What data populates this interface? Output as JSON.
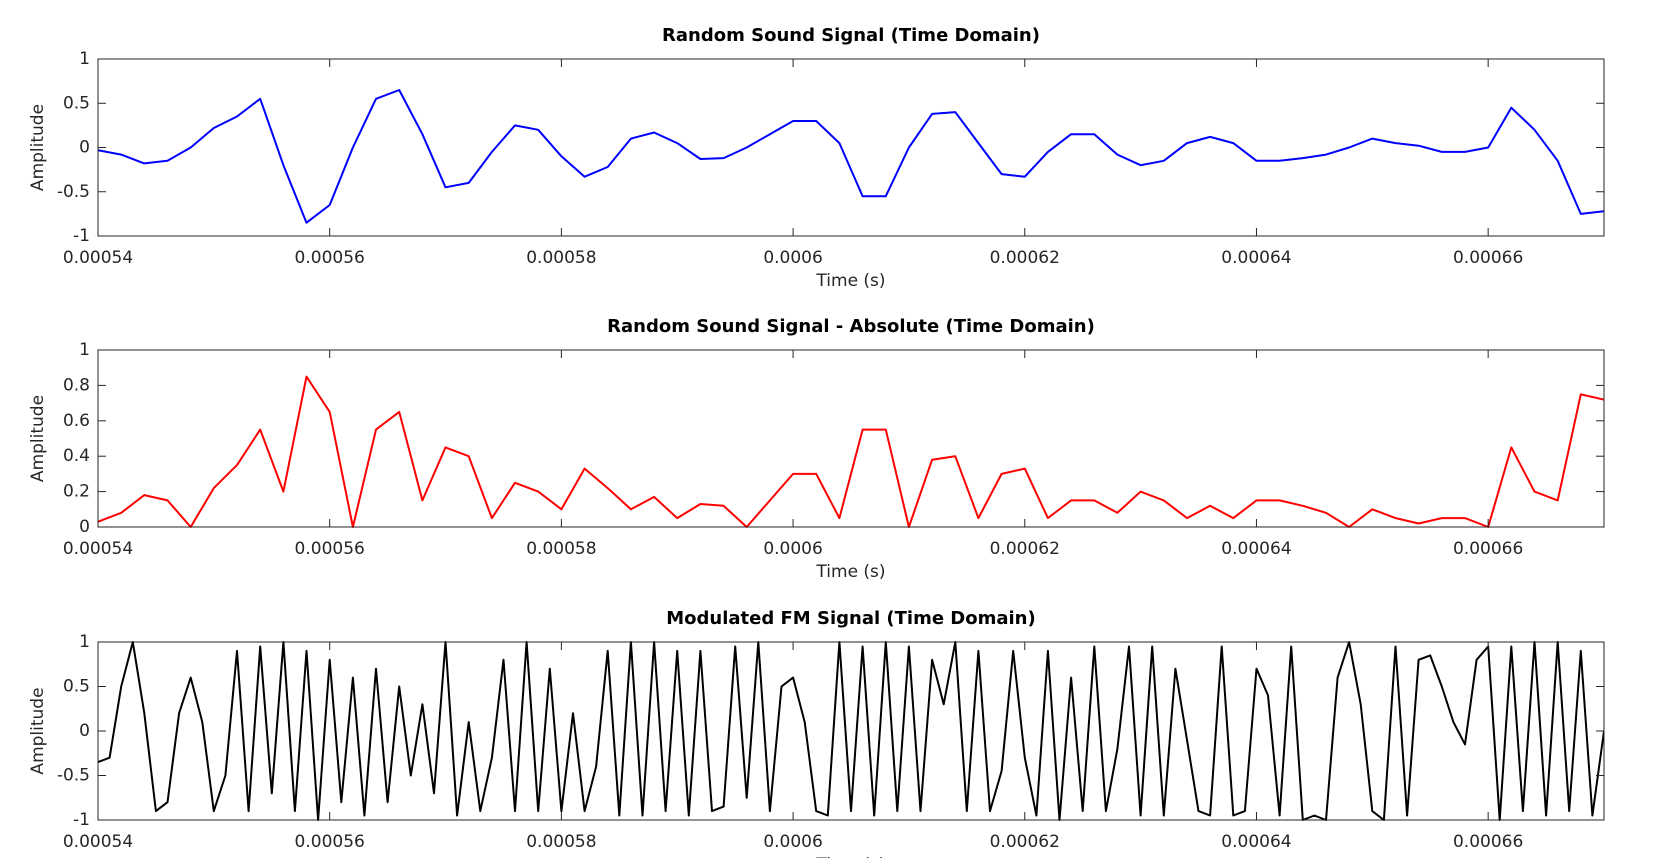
{
  "chart_data": [
    {
      "type": "line",
      "title": "Random Sound Signal (Time Domain)",
      "xlabel": "Time (s)",
      "ylabel": "Amplitude",
      "color": "#0000ff",
      "x": [
        0.00054,
        0.000542,
        0.000544,
        0.000546,
        0.000548,
        0.00055,
        0.000552,
        0.000554,
        0.000556,
        0.000558,
        0.00056,
        0.000562,
        0.000564,
        0.000566,
        0.000568,
        0.00057,
        0.000572,
        0.000574,
        0.000576,
        0.000578,
        0.00058,
        0.000582,
        0.000584,
        0.000586,
        0.000588,
        0.00059,
        0.000592,
        0.000594,
        0.000596,
        0.000598,
        0.0006,
        0.000602,
        0.000604,
        0.000606,
        0.000608,
        0.00061,
        0.000612,
        0.000614,
        0.000616,
        0.000618,
        0.00062,
        0.000622,
        0.000624,
        0.000626,
        0.000628,
        0.00063,
        0.000632,
        0.000634,
        0.000636,
        0.000638,
        0.00064,
        0.000642,
        0.000644,
        0.000646,
        0.000648,
        0.00065,
        0.000652,
        0.000654,
        0.000656,
        0.000658,
        0.00066,
        0.000662,
        0.000664,
        0.000666,
        0.000668,
        0.00067
      ],
      "values": [
        -0.03,
        -0.08,
        -0.18,
        -0.15,
        0.0,
        0.22,
        0.35,
        0.55,
        -0.2,
        -0.85,
        -0.65,
        0.0,
        0.55,
        0.65,
        0.15,
        -0.45,
        -0.4,
        -0.05,
        0.25,
        0.2,
        -0.1,
        -0.33,
        -0.22,
        0.1,
        0.17,
        0.05,
        -0.13,
        -0.12,
        0.0,
        0.15,
        0.3,
        0.3,
        0.05,
        -0.55,
        -0.55,
        0.0,
        0.38,
        0.4,
        0.05,
        -0.3,
        -0.33,
        -0.05,
        0.15,
        0.15,
        -0.08,
        -0.2,
        -0.15,
        0.05,
        0.12,
        0.05,
        -0.15,
        -0.15,
        -0.12,
        -0.08,
        0.0,
        0.1,
        0.05,
        0.02,
        -0.05,
        -0.05,
        0.0,
        0.45,
        0.2,
        -0.15,
        -0.75,
        -0.72
      ],
      "xlim": [
        0.00054,
        0.00067
      ],
      "xticks": [
        0.00054,
        0.00056,
        0.00058,
        0.0006,
        0.00062,
        0.00064,
        0.00066
      ],
      "ylim": [
        -1,
        1
      ],
      "yticks": [
        -1,
        -0.5,
        0,
        0.5,
        1
      ]
    },
    {
      "type": "line",
      "title": "Random Sound Signal - Absolute (Time Domain)",
      "xlabel": "Time (s)",
      "ylabel": "Amplitude",
      "color": "#ff0000",
      "x": [
        0.00054,
        0.000542,
        0.000544,
        0.000546,
        0.000548,
        0.00055,
        0.000552,
        0.000554,
        0.000556,
        0.000558,
        0.00056,
        0.000562,
        0.000564,
        0.000566,
        0.000568,
        0.00057,
        0.000572,
        0.000574,
        0.000576,
        0.000578,
        0.00058,
        0.000582,
        0.000584,
        0.000586,
        0.000588,
        0.00059,
        0.000592,
        0.000594,
        0.000596,
        0.000598,
        0.0006,
        0.000602,
        0.000604,
        0.000606,
        0.000608,
        0.00061,
        0.000612,
        0.000614,
        0.000616,
        0.000618,
        0.00062,
        0.000622,
        0.000624,
        0.000626,
        0.000628,
        0.00063,
        0.000632,
        0.000634,
        0.000636,
        0.000638,
        0.00064,
        0.000642,
        0.000644,
        0.000646,
        0.000648,
        0.00065,
        0.000652,
        0.000654,
        0.000656,
        0.000658,
        0.00066,
        0.000662,
        0.000664,
        0.000666,
        0.000668,
        0.00067
      ],
      "values": [
        0.03,
        0.08,
        0.18,
        0.15,
        0.0,
        0.22,
        0.35,
        0.55,
        0.2,
        0.85,
        0.65,
        0.0,
        0.55,
        0.65,
        0.15,
        0.45,
        0.4,
        0.05,
        0.25,
        0.2,
        0.1,
        0.33,
        0.22,
        0.1,
        0.17,
        0.05,
        0.13,
        0.12,
        0.0,
        0.15,
        0.3,
        0.3,
        0.05,
        0.55,
        0.55,
        0.0,
        0.38,
        0.4,
        0.05,
        0.3,
        0.33,
        0.05,
        0.15,
        0.15,
        0.08,
        0.2,
        0.15,
        0.05,
        0.12,
        0.05,
        0.15,
        0.15,
        0.12,
        0.08,
        0.0,
        0.1,
        0.05,
        0.02,
        0.05,
        0.05,
        0.0,
        0.45,
        0.2,
        0.15,
        0.75,
        0.72
      ],
      "xlim": [
        0.00054,
        0.00067
      ],
      "xticks": [
        0.00054,
        0.00056,
        0.00058,
        0.0006,
        0.00062,
        0.00064,
        0.00066
      ],
      "ylim": [
        0,
        1
      ],
      "yticks": [
        0,
        0.2,
        0.4,
        0.6,
        0.8,
        1
      ]
    },
    {
      "type": "line",
      "title": "Modulated FM Signal (Time Domain)",
      "xlabel": "Time (s)",
      "ylabel": "Amplitude",
      "color": "#000000",
      "x": [
        0.00054,
        0.000541,
        0.000542,
        0.000543,
        0.000544,
        0.000545,
        0.000546,
        0.000547,
        0.000548,
        0.000549,
        0.00055,
        0.000551,
        0.000552,
        0.000553,
        0.000554,
        0.000555,
        0.000556,
        0.000557,
        0.000558,
        0.000559,
        0.00056,
        0.000561,
        0.000562,
        0.000563,
        0.000564,
        0.000565,
        0.000566,
        0.000567,
        0.000568,
        0.000569,
        0.00057,
        0.000571,
        0.000572,
        0.000573,
        0.000574,
        0.000575,
        0.000576,
        0.000577,
        0.000578,
        0.000579,
        0.00058,
        0.000581,
        0.000582,
        0.000583,
        0.000584,
        0.000585,
        0.000586,
        0.000587,
        0.000588,
        0.000589,
        0.00059,
        0.000591,
        0.000592,
        0.000593,
        0.000594,
        0.000595,
        0.000596,
        0.000597,
        0.000598,
        0.000599,
        0.0006,
        0.000601,
        0.000602,
        0.000603,
        0.000604,
        0.000605,
        0.000606,
        0.000607,
        0.000608,
        0.000609,
        0.00061,
        0.000611,
        0.000612,
        0.000613,
        0.000614,
        0.000615,
        0.000616,
        0.000617,
        0.000618,
        0.000619,
        0.00062,
        0.000621,
        0.000622,
        0.000623,
        0.000624,
        0.000625,
        0.000626,
        0.000627,
        0.000628,
        0.000629,
        0.00063,
        0.000631,
        0.000632,
        0.000633,
        0.000634,
        0.000635,
        0.000636,
        0.000637,
        0.000638,
        0.000639,
        0.00064,
        0.000641,
        0.000642,
        0.000643,
        0.000644,
        0.000645,
        0.000646,
        0.000647,
        0.000648,
        0.000649,
        0.00065,
        0.000651,
        0.000652,
        0.000653,
        0.000654,
        0.000655,
        0.000656,
        0.000657,
        0.000658,
        0.000659,
        0.00066,
        0.000661,
        0.000662,
        0.000663,
        0.000664,
        0.000665,
        0.000666,
        0.000667,
        0.000668,
        0.000669,
        0.00067
      ],
      "values": [
        -0.35,
        -0.3,
        0.5,
        1,
        0.2,
        -0.9,
        -0.8,
        0.2,
        0.6,
        0.1,
        -0.9,
        -0.5,
        0.9,
        -0.9,
        0.95,
        -0.7,
        1,
        -0.9,
        0.9,
        -1,
        0.8,
        -0.8,
        0.6,
        -0.95,
        0.7,
        -0.8,
        0.5,
        -0.5,
        0.3,
        -0.7,
        1,
        -0.95,
        0.1,
        -0.9,
        -0.3,
        0.8,
        -0.9,
        1,
        -0.9,
        0.7,
        -0.9,
        0.2,
        -0.9,
        -0.4,
        0.9,
        -0.95,
        1,
        -0.95,
        1,
        -0.9,
        0.9,
        -0.95,
        0.9,
        -0.9,
        -0.85,
        0.95,
        -0.75,
        1,
        -0.9,
        0.5,
        0.6,
        0.1,
        -0.9,
        -0.95,
        1,
        -0.9,
        0.95,
        -0.95,
        1,
        -0.9,
        0.95,
        -0.9,
        0.8,
        0.3,
        1,
        -0.9,
        0.9,
        -0.9,
        -0.45,
        0.9,
        -0.3,
        -0.95,
        0.9,
        -1,
        0.6,
        -0.9,
        0.95,
        -0.9,
        -0.2,
        0.95,
        -0.95,
        0.95,
        -0.95,
        0.7,
        -0.1,
        -0.9,
        -0.95,
        0.95,
        -0.95,
        -0.9,
        0.7,
        0.4,
        -0.95,
        0.95,
        -1,
        -0.95,
        -1,
        0.6,
        1,
        0.3,
        -0.9,
        -1,
        0.95,
        -0.95,
        0.8,
        0.85,
        0.5,
        0.1,
        -0.15,
        0.8,
        0.95,
        -1,
        0.95,
        -0.9,
        1,
        -0.95,
        1,
        -0.9,
        0.9,
        -0.95,
        0
      ],
      "xlim": [
        0.00054,
        0.00067
      ],
      "xticks": [
        0.00054,
        0.00056,
        0.00058,
        0.0006,
        0.00062,
        0.00064,
        0.00066
      ],
      "ylim": [
        -1,
        1
      ],
      "yticks": [
        -1,
        -0.5,
        0,
        0.5,
        1
      ]
    }
  ]
}
